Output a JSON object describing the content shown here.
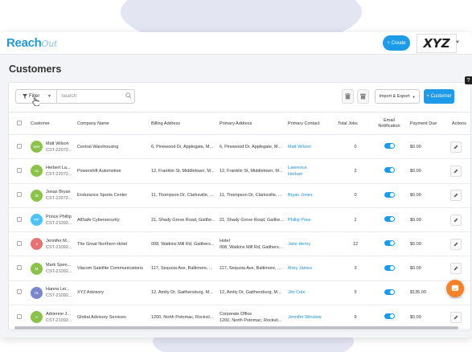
{
  "app": {
    "logo_main": "Reach",
    "logo_script": "Out",
    "create_label": "+ Create",
    "brand_label": "XYZ"
  },
  "page": {
    "title": "Customers"
  },
  "toolbar": {
    "filter_label": "Filter",
    "search_placeholder": "Search",
    "import_export_label": "Import & Export",
    "add_customer_label": "+ Customer"
  },
  "table": {
    "headers": {
      "customer": "Customer",
      "company": "Company Name",
      "billing": "Billing Address",
      "primary_address": "Primary Address",
      "contact": "Primary Contact",
      "jobs": "Total Jobs",
      "email_1": "Email",
      "email_2": "Notification",
      "payment": "Payment Due",
      "actions": "Actions"
    },
    "rows": [
      {
        "initials": "MW",
        "color": "#8bc34a",
        "name": "Matt Wilson",
        "id": "CST-22072...",
        "company": "Central Warehousing",
        "billing": "6, Pinewood Dr, Applegate, M...",
        "primary_1": "6, Pinewood Dr, Applegate, M...",
        "primary_2": "",
        "contact_1": "Matt Wilson",
        "contact_2": "",
        "jobs": "0",
        "payment": "$0.00"
      },
      {
        "initials": "HL",
        "color": "#8bc34a",
        "name": "Herbert La...",
        "id": "CST-22072...",
        "company": "Powershift Automotive",
        "billing": "12, Franklin St, Middletown, M...",
        "primary_1": "12, Franklin St, Middletown, M...",
        "primary_2": "",
        "contact_1": "Lawrence",
        "contact_2": "Herbart",
        "jobs": "2",
        "payment": "$0.00"
      },
      {
        "initials": "JB",
        "color": "#8bc34a",
        "name": "Jonas Bryan",
        "id": "CST-22072...",
        "company": "Endurance Sports Center",
        "billing": "11, Thompson Dr, Clarksville, ...",
        "primary_1": "11, Thompson Dr, Clarksville, ...",
        "primary_2": "",
        "contact_1": "Bryan Jones",
        "contact_2": "",
        "jobs": "0",
        "payment": "$0.00"
      },
      {
        "initials": "PP",
        "color": "#4fc3f7",
        "name": "Prince Phillip",
        "id": "CST-21092...",
        "company": "AllSafe Cybersecurity",
        "billing": "21, Shady Grove Road, Gaithe...",
        "primary_1": "21, Shady Grove Road, Gaithe...",
        "primary_2": "",
        "contact_1": "Phillip Price",
        "contact_2": "",
        "jobs": "2",
        "payment": "$0.00"
      },
      {
        "initials": "J",
        "color": "#e57373",
        "name": "Jennifer M...",
        "id": "CST-21092...",
        "company": "The Great Northern Hotel",
        "billing": "008, Watkins Mill Rd, Gaithers...",
        "primary_1": "Hotel",
        "primary_2": "008, Watkins Mill Rd, Gaithers...",
        "contact_1": "Jane Henry",
        "contact_2": "",
        "jobs": "12",
        "payment": "$0.00"
      },
      {
        "initials": "M",
        "color": "#8bc34a",
        "name": "Mark Spen...",
        "id": "CST-21092...",
        "company": "Viacom Satellite Communications",
        "billing": "117, Sequoia Ave, Baltimore, ...",
        "primary_1": "117, Sequoia Ave, Baltimore, ...",
        "primary_2": "",
        "contact_1": "Mary James",
        "contact_2": "",
        "jobs": "3",
        "payment": "$0.00"
      },
      {
        "initials": "HL",
        "color": "#7986cb",
        "name": "Hanna Lei...",
        "id": "CST-21092...",
        "company": "XYZ Advisory",
        "billing": "12, Amity Dr, Gaithersburg, M...",
        "primary_1": "12, Amity Dr, Gaithersburg, M...",
        "primary_2": "",
        "contact_1": "Jim Cole",
        "contact_2": "",
        "jobs": "5",
        "payment": "$135.00"
      },
      {
        "initials": "A",
        "color": "#8bc34a",
        "name": "Adrienne J...",
        "id": "CST-21092...",
        "company": "Global Advisory Services",
        "billing": "1200, North Potomac, Rockvil...",
        "primary_1": "Corporate Office",
        "primary_2": "1200, North Potomac, Rockvil...",
        "contact_1": "Jennifer Winslow",
        "contact_2": "",
        "jobs": "9",
        "payment": "$0.00"
      }
    ]
  },
  "help_label": "?"
}
